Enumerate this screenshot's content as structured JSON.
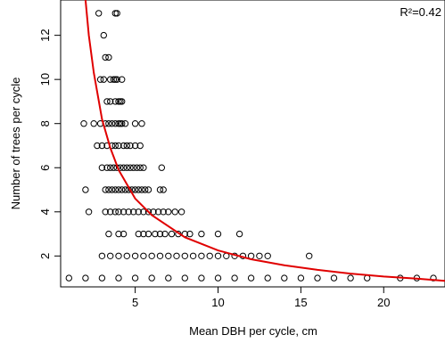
{
  "chart_data": {
    "type": "scatter",
    "title": "",
    "xlabel": "Mean DBH per cycle, cm",
    "ylabel": "Number of trees per cycle",
    "xlim": [
      0.5,
      23.7
    ],
    "ylim": [
      0.6,
      13.6
    ],
    "xticks": [
      5,
      10,
      15,
      20
    ],
    "yticks": [
      2,
      4,
      6,
      8,
      10,
      12
    ],
    "grid": false,
    "legend": "none",
    "annotation": "R²=0.42",
    "point_color": "#000000",
    "fit_color": "#e00000",
    "fit_curve": {
      "form": "power",
      "x": [
        2.0,
        2.2,
        2.5,
        3.0,
        3.5,
        4.0,
        5.0,
        6.0,
        8.0,
        10.0,
        12.0,
        14.0,
        16.0,
        18.0,
        20.0,
        22.0,
        23.7
      ],
      "y": [
        13.6,
        12.0,
        10.3,
        8.2,
        6.9,
        5.9,
        4.6,
        3.85,
        2.85,
        2.25,
        1.85,
        1.58,
        1.37,
        1.2,
        1.07,
        0.97,
        0.87
      ]
    },
    "points": [
      {
        "x": 2.8,
        "y": 13
      },
      {
        "x": 3.8,
        "y": 13
      },
      {
        "x": 3.9,
        "y": 13
      },
      {
        "x": 3.1,
        "y": 12
      },
      {
        "x": 3.2,
        "y": 11
      },
      {
        "x": 3.4,
        "y": 11
      },
      {
        "x": 2.9,
        "y": 10
      },
      {
        "x": 3.1,
        "y": 10
      },
      {
        "x": 3.5,
        "y": 10
      },
      {
        "x": 3.7,
        "y": 10
      },
      {
        "x": 3.8,
        "y": 10
      },
      {
        "x": 3.9,
        "y": 10
      },
      {
        "x": 4.2,
        "y": 10
      },
      {
        "x": 3.3,
        "y": 9
      },
      {
        "x": 3.5,
        "y": 9
      },
      {
        "x": 3.8,
        "y": 9
      },
      {
        "x": 4.0,
        "y": 9
      },
      {
        "x": 4.1,
        "y": 9
      },
      {
        "x": 4.2,
        "y": 9
      },
      {
        "x": 1.9,
        "y": 8
      },
      {
        "x": 2.5,
        "y": 8
      },
      {
        "x": 2.9,
        "y": 8
      },
      {
        "x": 3.2,
        "y": 8
      },
      {
        "x": 3.4,
        "y": 8
      },
      {
        "x": 3.6,
        "y": 8
      },
      {
        "x": 3.8,
        "y": 8
      },
      {
        "x": 4.0,
        "y": 8
      },
      {
        "x": 4.1,
        "y": 8
      },
      {
        "x": 4.2,
        "y": 8
      },
      {
        "x": 4.4,
        "y": 8
      },
      {
        "x": 5.0,
        "y": 8
      },
      {
        "x": 5.4,
        "y": 8
      },
      {
        "x": 2.7,
        "y": 7
      },
      {
        "x": 3.0,
        "y": 7
      },
      {
        "x": 3.3,
        "y": 7
      },
      {
        "x": 3.6,
        "y": 7
      },
      {
        "x": 3.8,
        "y": 7
      },
      {
        "x": 4.0,
        "y": 7
      },
      {
        "x": 4.3,
        "y": 7
      },
      {
        "x": 4.5,
        "y": 7
      },
      {
        "x": 4.7,
        "y": 7
      },
      {
        "x": 5.0,
        "y": 7
      },
      {
        "x": 5.3,
        "y": 7
      },
      {
        "x": 3.0,
        "y": 6
      },
      {
        "x": 3.3,
        "y": 6
      },
      {
        "x": 3.5,
        "y": 6
      },
      {
        "x": 3.7,
        "y": 6
      },
      {
        "x": 3.9,
        "y": 6
      },
      {
        "x": 4.1,
        "y": 6
      },
      {
        "x": 4.3,
        "y": 6
      },
      {
        "x": 4.5,
        "y": 6
      },
      {
        "x": 4.7,
        "y": 6
      },
      {
        "x": 4.9,
        "y": 6
      },
      {
        "x": 5.1,
        "y": 6
      },
      {
        "x": 5.3,
        "y": 6
      },
      {
        "x": 5.5,
        "y": 6
      },
      {
        "x": 6.6,
        "y": 6
      },
      {
        "x": 2.0,
        "y": 5
      },
      {
        "x": 3.2,
        "y": 5
      },
      {
        "x": 3.4,
        "y": 5
      },
      {
        "x": 3.6,
        "y": 5
      },
      {
        "x": 3.8,
        "y": 5
      },
      {
        "x": 4.0,
        "y": 5
      },
      {
        "x": 4.2,
        "y": 5
      },
      {
        "x": 4.4,
        "y": 5
      },
      {
        "x": 4.6,
        "y": 5
      },
      {
        "x": 4.8,
        "y": 5
      },
      {
        "x": 5.0,
        "y": 5
      },
      {
        "x": 5.2,
        "y": 5
      },
      {
        "x": 5.4,
        "y": 5
      },
      {
        "x": 5.6,
        "y": 5
      },
      {
        "x": 5.8,
        "y": 5
      },
      {
        "x": 6.5,
        "y": 5
      },
      {
        "x": 6.7,
        "y": 5
      },
      {
        "x": 2.2,
        "y": 4
      },
      {
        "x": 3.2,
        "y": 4
      },
      {
        "x": 3.5,
        "y": 4
      },
      {
        "x": 3.8,
        "y": 4
      },
      {
        "x": 4.0,
        "y": 4
      },
      {
        "x": 4.3,
        "y": 4
      },
      {
        "x": 4.6,
        "y": 4
      },
      {
        "x": 4.9,
        "y": 4
      },
      {
        "x": 5.2,
        "y": 4
      },
      {
        "x": 5.5,
        "y": 4
      },
      {
        "x": 5.8,
        "y": 4
      },
      {
        "x": 6.1,
        "y": 4
      },
      {
        "x": 6.4,
        "y": 4
      },
      {
        "x": 6.7,
        "y": 4
      },
      {
        "x": 7.0,
        "y": 4
      },
      {
        "x": 7.4,
        "y": 4
      },
      {
        "x": 7.8,
        "y": 4
      },
      {
        "x": 3.4,
        "y": 3
      },
      {
        "x": 4.0,
        "y": 3
      },
      {
        "x": 4.3,
        "y": 3
      },
      {
        "x": 5.2,
        "y": 3
      },
      {
        "x": 5.5,
        "y": 3
      },
      {
        "x": 5.8,
        "y": 3
      },
      {
        "x": 6.2,
        "y": 3
      },
      {
        "x": 6.5,
        "y": 3
      },
      {
        "x": 6.8,
        "y": 3
      },
      {
        "x": 7.2,
        "y": 3
      },
      {
        "x": 7.6,
        "y": 3
      },
      {
        "x": 8.0,
        "y": 3
      },
      {
        "x": 8.3,
        "y": 3
      },
      {
        "x": 9.0,
        "y": 3
      },
      {
        "x": 10.0,
        "y": 3
      },
      {
        "x": 11.3,
        "y": 3
      },
      {
        "x": 3.0,
        "y": 2
      },
      {
        "x": 3.5,
        "y": 2
      },
      {
        "x": 4.0,
        "y": 2
      },
      {
        "x": 4.5,
        "y": 2
      },
      {
        "x": 5.0,
        "y": 2
      },
      {
        "x": 5.5,
        "y": 2
      },
      {
        "x": 6.0,
        "y": 2
      },
      {
        "x": 6.5,
        "y": 2
      },
      {
        "x": 7.0,
        "y": 2
      },
      {
        "x": 7.5,
        "y": 2
      },
      {
        "x": 8.0,
        "y": 2
      },
      {
        "x": 8.5,
        "y": 2
      },
      {
        "x": 9.0,
        "y": 2
      },
      {
        "x": 9.5,
        "y": 2
      },
      {
        "x": 10.0,
        "y": 2
      },
      {
        "x": 10.5,
        "y": 2
      },
      {
        "x": 11.0,
        "y": 2
      },
      {
        "x": 11.5,
        "y": 2
      },
      {
        "x": 12.0,
        "y": 2
      },
      {
        "x": 12.5,
        "y": 2
      },
      {
        "x": 13.0,
        "y": 2
      },
      {
        "x": 15.5,
        "y": 2
      },
      {
        "x": 1.0,
        "y": 1
      },
      {
        "x": 2.0,
        "y": 1
      },
      {
        "x": 3.0,
        "y": 1
      },
      {
        "x": 4.0,
        "y": 1
      },
      {
        "x": 5.0,
        "y": 1
      },
      {
        "x": 6.0,
        "y": 1
      },
      {
        "x": 7.0,
        "y": 1
      },
      {
        "x": 8.0,
        "y": 1
      },
      {
        "x": 9.0,
        "y": 1
      },
      {
        "x": 10.0,
        "y": 1
      },
      {
        "x": 11.0,
        "y": 1
      },
      {
        "x": 12.0,
        "y": 1
      },
      {
        "x": 13.0,
        "y": 1
      },
      {
        "x": 14.0,
        "y": 1
      },
      {
        "x": 15.0,
        "y": 1
      },
      {
        "x": 16.0,
        "y": 1
      },
      {
        "x": 17.0,
        "y": 1
      },
      {
        "x": 18.0,
        "y": 1
      },
      {
        "x": 19.0,
        "y": 1
      },
      {
        "x": 21.0,
        "y": 1
      },
      {
        "x": 22.0,
        "y": 1
      },
      {
        "x": 23.0,
        "y": 1
      }
    ]
  }
}
